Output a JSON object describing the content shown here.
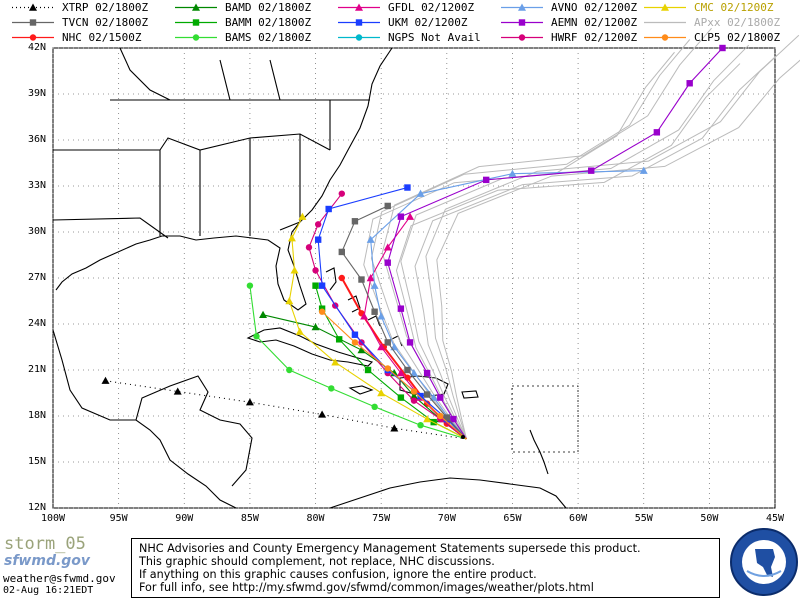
{
  "legend": [
    {
      "id": "xtrp",
      "model": "XTRP",
      "time": "02/1800Z",
      "color": "#000000",
      "marker": "triangle",
      "dash": true
    },
    {
      "id": "bamd",
      "model": "BAMD",
      "time": "02/1800Z",
      "color": "#008800",
      "marker": "triangle"
    },
    {
      "id": "gfdl",
      "model": "GFDL",
      "time": "02/1200Z",
      "color": "#e0008a",
      "marker": "triangle"
    },
    {
      "id": "avno",
      "model": "AVNO",
      "time": "02/1200Z",
      "color": "#6a9fe8",
      "marker": "triangle"
    },
    {
      "id": "cmc",
      "model": "CMC",
      "time": "02/1200Z",
      "color": "#e8d200",
      "marker": "triangle"
    },
    {
      "id": "tvcn",
      "model": "TVCN",
      "time": "02/1800Z",
      "color": "#666666",
      "marker": "square"
    },
    {
      "id": "bamm",
      "model": "BAMM",
      "time": "02/1800Z",
      "color": "#00aa00",
      "marker": "square"
    },
    {
      "id": "ukm",
      "model": "UKM",
      "time": "02/1200Z",
      "color": "#1a3dff",
      "marker": "square"
    },
    {
      "id": "aemn",
      "model": "AEMN",
      "time": "02/1200Z",
      "color": "#9900cc",
      "marker": "square"
    },
    {
      "id": "apxx",
      "model": "APxx",
      "time": "02/1800Z",
      "color": "#bbbbbb",
      "marker": "none"
    },
    {
      "id": "nhc",
      "model": "NHC",
      "time": "02/1500Z",
      "color": "#ff1a1a",
      "marker": "circle"
    },
    {
      "id": "bams",
      "model": "BAMS",
      "time": "02/1800Z",
      "color": "#33dd33",
      "marker": "circle"
    },
    {
      "id": "ngps",
      "model": "NGPS",
      "time": "Not Avail",
      "color": "#00b8cc",
      "marker": "circle"
    },
    {
      "id": "hwrf",
      "model": "HWRF",
      "time": "02/1200Z",
      "color": "#d6007a",
      "marker": "circle"
    },
    {
      "id": "clp5",
      "model": "CLP5",
      "time": "02/1800Z",
      "color": "#ff8c1a",
      "marker": "circle"
    }
  ],
  "lat_labels": [
    "42N",
    "39N",
    "36N",
    "33N",
    "30N",
    "27N",
    "24N",
    "21N",
    "18N",
    "15N",
    "12N"
  ],
  "lon_labels": [
    "100W",
    "95W",
    "90W",
    "85W",
    "80W",
    "75W",
    "70W",
    "65W",
    "60W",
    "55W",
    "50W",
    "45W"
  ],
  "lat_values": [
    42,
    39,
    36,
    33,
    30,
    27,
    24,
    21,
    18,
    15,
    12
  ],
  "lon_values": [
    -100,
    -95,
    -90,
    -85,
    -80,
    -75,
    -70,
    -65,
    -60,
    -55,
    -50,
    -45
  ],
  "tracks": {
    "nhc": [
      [
        -68.5,
        16.5
      ],
      [
        -70,
        17.5
      ],
      [
        -71.5,
        18.8
      ],
      [
        -73,
        20.5
      ],
      [
        -74.8,
        22.5
      ],
      [
        -76.5,
        24.7
      ],
      [
        -78,
        27.0
      ]
    ],
    "xtrp": [
      [
        -68.5,
        16.5
      ],
      [
        -74,
        17.2
      ],
      [
        -79.5,
        18.1
      ],
      [
        -85,
        18.9
      ],
      [
        -90.5,
        19.6
      ],
      [
        -96,
        20.3
      ]
    ],
    "bamd": [
      [
        -68.5,
        16.5
      ],
      [
        -70.5,
        17.8
      ],
      [
        -72.5,
        19.3
      ],
      [
        -74,
        20.8
      ],
      [
        -76.5,
        22.3
      ],
      [
        -80,
        23.8
      ],
      [
        -84,
        24.6
      ]
    ],
    "bamm": [
      [
        -68.5,
        16.5
      ],
      [
        -71,
        17.6
      ],
      [
        -73.5,
        19.2
      ],
      [
        -76,
        21.0
      ],
      [
        -78.2,
        23.0
      ],
      [
        -79.5,
        25.0
      ],
      [
        -80,
        26.5
      ]
    ],
    "bams": [
      [
        -68.5,
        16.5
      ],
      [
        -72,
        17.4
      ],
      [
        -75.5,
        18.6
      ],
      [
        -78.8,
        19.8
      ],
      [
        -82,
        21.0
      ],
      [
        -84.5,
        23.2
      ],
      [
        -85,
        26.5
      ]
    ],
    "gfdl": [
      [
        -68.5,
        16.5
      ],
      [
        -70.3,
        17.8
      ],
      [
        -72,
        19.2
      ],
      [
        -73.5,
        20.8
      ],
      [
        -75,
        22.5
      ],
      [
        -76.3,
        24.5
      ],
      [
        -75.8,
        27.0
      ],
      [
        -74.5,
        29.0
      ],
      [
        -72.8,
        31.0
      ]
    ],
    "hwrf": [
      [
        -68.5,
        16.5
      ],
      [
        -70.5,
        17.8
      ],
      [
        -72.5,
        19.0
      ],
      [
        -74.5,
        20.8
      ],
      [
        -76.5,
        22.8
      ],
      [
        -78.5,
        25.2
      ],
      [
        -80,
        27.5
      ],
      [
        -80.5,
        29.0
      ],
      [
        -79.8,
        30.5
      ],
      [
        -78,
        32.5
      ]
    ],
    "avno": [
      [
        -68.5,
        16.5
      ],
      [
        -69.8,
        17.8
      ],
      [
        -71,
        19.2
      ],
      [
        -72.5,
        20.8
      ],
      [
        -74,
        22.5
      ],
      [
        -75,
        24.5
      ],
      [
        -75.5,
        26.5
      ],
      [
        -75.8,
        29.5
      ],
      [
        -72,
        32.5
      ],
      [
        -65,
        33.8
      ],
      [
        -55,
        34.0
      ]
    ],
    "ukm": [
      [
        -68.5,
        16.5
      ],
      [
        -70,
        17.8
      ],
      [
        -72,
        19.3
      ],
      [
        -74.5,
        21.0
      ],
      [
        -77,
        23.3
      ],
      [
        -79.5,
        26.5
      ],
      [
        -79.8,
        29.5
      ],
      [
        -79,
        31.5
      ],
      [
        -73,
        32.9
      ]
    ],
    "aemn": [
      [
        -68.5,
        16.5
      ],
      [
        -69.5,
        17.8
      ],
      [
        -70.5,
        19.2
      ],
      [
        -71.5,
        20.8
      ],
      [
        -72.8,
        22.8
      ],
      [
        -73.5,
        25.0
      ],
      [
        -74.5,
        28.0
      ],
      [
        -73.5,
        31.0
      ],
      [
        -67,
        33.4
      ],
      [
        -59,
        34.0
      ],
      [
        -54,
        36.5
      ],
      [
        -51.5,
        39.7
      ],
      [
        -49,
        42.0
      ]
    ],
    "tvcn": [
      [
        -68.5,
        16.5
      ],
      [
        -70,
        17.9
      ],
      [
        -71.5,
        19.4
      ],
      [
        -73,
        21.0
      ],
      [
        -74.5,
        22.8
      ],
      [
        -75.5,
        24.8
      ],
      [
        -76.5,
        26.9
      ],
      [
        -78,
        28.7
      ],
      [
        -77,
        30.7
      ],
      [
        -74.5,
        31.7
      ]
    ],
    "cmc": [
      [
        -68.5,
        16.5
      ],
      [
        -71.5,
        17.8
      ],
      [
        -75,
        19.5
      ],
      [
        -78.5,
        21.5
      ],
      [
        -81.2,
        23.5
      ],
      [
        -82,
        25.5
      ],
      [
        -81.6,
        27.5
      ],
      [
        -81.8,
        29.6
      ],
      [
        -81,
        31.0
      ]
    ],
    "clp5": [
      [
        -68.5,
        16.5
      ],
      [
        -70.5,
        18.0
      ],
      [
        -72.5,
        19.6
      ],
      [
        -74.5,
        21.1
      ],
      [
        -77,
        22.8
      ],
      [
        -79.5,
        24.8
      ]
    ]
  },
  "disclaimer": [
    "NHC Advisories and County Emergency Management Statements supersede this product.",
    "This graphic should complement, not replace, NHC discussions.",
    "If anything on this graphic causes confusion, ignore the entire product.",
    "For full info, see  http://my.sfwmd.gov/sfwmd/common/images/weather/plots.html"
  ],
  "branding": {
    "storm_name": "storm_05",
    "org": "sfwmd.gov",
    "email": "weather@sfwmd.gov",
    "timestamp": "02-Aug 16:21EDT"
  }
}
